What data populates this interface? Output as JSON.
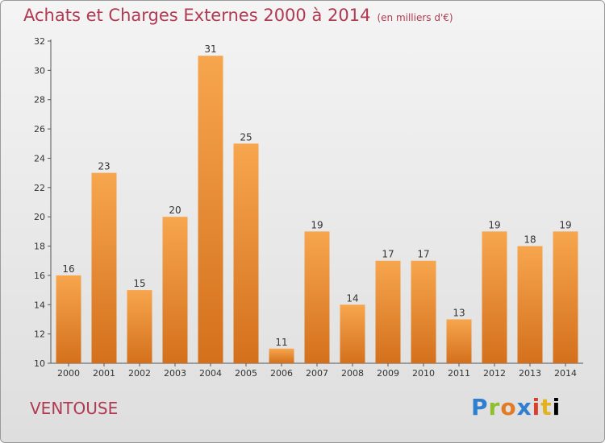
{
  "chart_data": {
    "type": "bar",
    "title": "Achats et Charges Externes 2000 à 2014",
    "subtitle": "(en milliers d'€)",
    "categories": [
      "2000",
      "2001",
      "2002",
      "2003",
      "2004",
      "2005",
      "2006",
      "2007",
      "2008",
      "2009",
      "2010",
      "2011",
      "2012",
      "2013",
      "2014"
    ],
    "values": [
      16,
      23,
      15,
      20,
      31,
      25,
      11,
      19,
      14,
      17,
      17,
      13,
      19,
      18,
      19
    ],
    "ylim": [
      10,
      32
    ],
    "yticks": [
      10,
      12,
      14,
      16,
      18,
      20,
      22,
      24,
      26,
      28,
      30,
      32
    ],
    "grid": false,
    "colors": {
      "bar_light": "#f7a64e",
      "bar_dark": "#d4701c",
      "axis": "#555555"
    }
  },
  "footer": {
    "commune": "VENTOUSE",
    "logo_letters": [
      "P",
      "r",
      "o",
      "x",
      "i",
      "t",
      "i"
    ]
  }
}
